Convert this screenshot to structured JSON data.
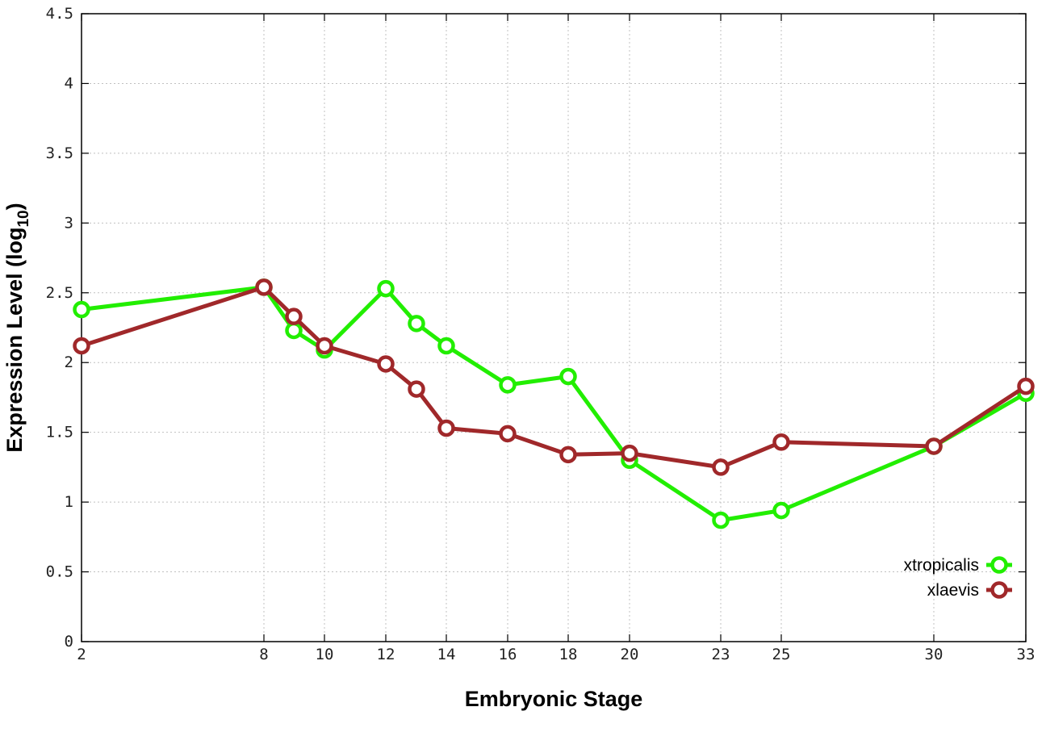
{
  "chart_data": {
    "type": "line",
    "title": "",
    "xlabel": "Embryonic Stage",
    "ylabel": {
      "main": "Expression Level (log",
      "sub": "10",
      "close": ")"
    },
    "ylim": [
      0,
      4.5
    ],
    "yticks": [
      "0",
      "0.5",
      "1",
      "1.5",
      "2",
      "2.5",
      "3",
      "3.5",
      "4",
      "4.5"
    ],
    "xticks": [
      "2",
      "8",
      "10",
      "12",
      "14",
      "16",
      "18",
      "20",
      "23",
      "25",
      "30",
      "33"
    ],
    "grid": true,
    "legend_position": "bottom-right",
    "series": [
      {
        "name": "xtropicalis",
        "color": "#22ee00",
        "values": [
          2.38,
          2.54,
          2.23,
          2.09,
          2.53,
          2.28,
          2.12,
          1.84,
          1.9,
          1.3,
          0.87,
          0.94,
          1.4,
          1.78
        ]
      },
      {
        "name": "xlaevis",
        "color": "#a0282a",
        "values": [
          2.12,
          2.54,
          2.33,
          2.12,
          1.99,
          1.81,
          1.53,
          1.49,
          1.34,
          1.35,
          1.25,
          1.43,
          1.4,
          1.83
        ]
      }
    ],
    "x": [
      2,
      8,
      9,
      10,
      12,
      13,
      14,
      16,
      18,
      20,
      23,
      25,
      30,
      33
    ]
  }
}
